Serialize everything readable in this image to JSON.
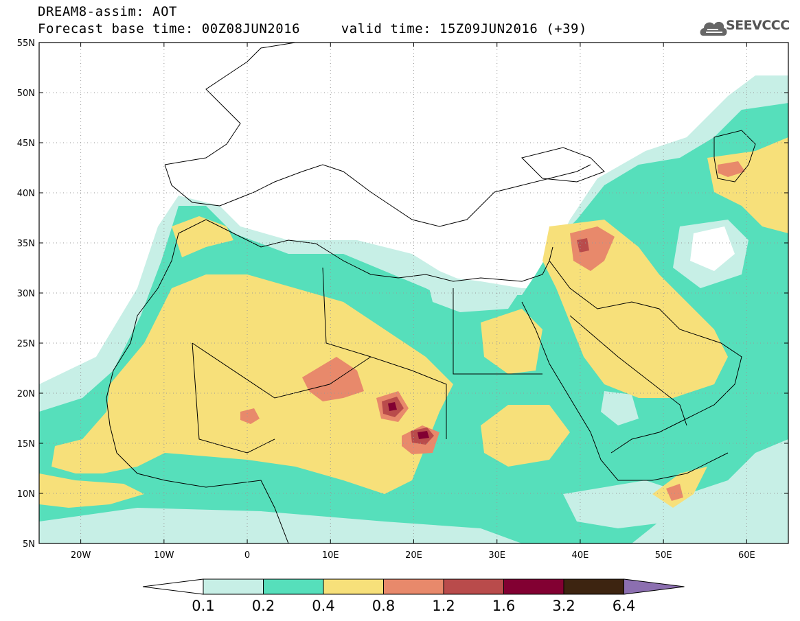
{
  "header": {
    "model_title": "DREAM8-assim: AOT",
    "times_line": "Forecast base time: 00Z08JUN2016     valid time: 15Z09JUN2016 (+39)"
  },
  "logo": {
    "text": "SEEVCCC",
    "icon": "cloud-icon"
  },
  "map": {
    "projection": "lat-lon",
    "lon_range": [
      -25,
      65
    ],
    "lat_range": [
      5,
      55
    ],
    "lat_ticks": [
      "55N",
      "50N",
      "45N",
      "40N",
      "35N",
      "30N",
      "25N",
      "20N",
      "15N",
      "10N",
      "5N"
    ],
    "lon_ticks": [
      "20W",
      "10W",
      "0",
      "10E",
      "20E",
      "30E",
      "40E",
      "50E",
      "60E"
    ],
    "grid": "dotted"
  },
  "colorbar": {
    "labels": [
      "0.1",
      "0.2",
      "0.4",
      "0.8",
      "1.2",
      "1.6",
      "3.2",
      "6.4"
    ],
    "colors": [
      "#ffffff",
      "#c7efe6",
      "#56dfbb",
      "#f7e07a",
      "#e8896b",
      "#b94b4b",
      "#820032",
      "#3d2410",
      "#8c6fb0"
    ],
    "extend": "both"
  }
}
